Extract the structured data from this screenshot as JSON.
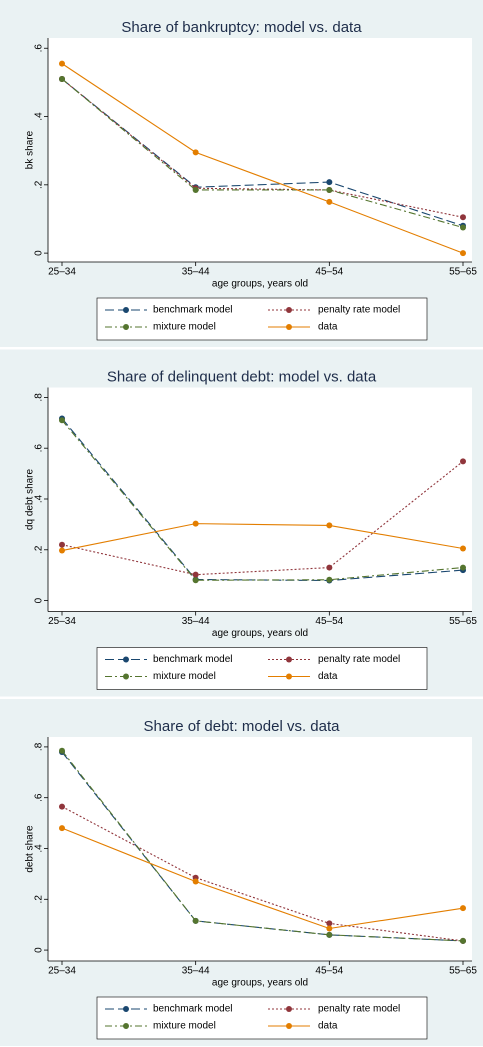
{
  "chart_data": [
    {
      "type": "line",
      "title": "Share of bankruptcy: model vs. data",
      "x_label": "age groups, years old",
      "y_label": "bk share",
      "categories": [
        "25–34",
        "35–44",
        "45–54",
        "55–65"
      ],
      "ylim": [
        -0.026,
        0.63
      ],
      "yticks": [
        0,
        {
          "value": 0.2,
          "label": ".2"
        },
        {
          "value": 0.4,
          "label": ".4"
        },
        {
          "value": 0.6,
          "label": ".6"
        }
      ],
      "series": [
        {
          "name": "benchmark model",
          "color": "#1a476f",
          "style": "longdash",
          "values": [
            0.51,
            0.193,
            0.208,
            0.08
          ]
        },
        {
          "name": "penalty rate model",
          "color": "#90353b",
          "style": "dot",
          "values": [
            0.51,
            0.19,
            0.185,
            0.105
          ]
        },
        {
          "name": "mixture model",
          "color": "#55752f",
          "style": "dashdot",
          "values": [
            0.51,
            0.185,
            0.185,
            0.075
          ]
        },
        {
          "name": "data",
          "color": "#e37e00",
          "style": "solid",
          "values": [
            0.555,
            0.295,
            0.15,
            0
          ]
        }
      ]
    },
    {
      "type": "line",
      "title": "Share of delinquent debt: model vs. data",
      "x_label": "age groups, years old",
      "y_label": "dq debt share",
      "categories": [
        "25–34",
        "35–44",
        "45–54",
        "55–65"
      ],
      "ylim": [
        -0.043,
        0.839
      ],
      "yticks": [
        0,
        {
          "value": 0.2,
          "label": ".2"
        },
        {
          "value": 0.4,
          "label": ".4"
        },
        {
          "value": 0.6,
          "label": ".6"
        },
        {
          "value": 0.8,
          "label": ".8"
        }
      ],
      "series": [
        {
          "name": "benchmark model",
          "color": "#1a476f",
          "style": "longdash",
          "values": [
            0.717,
            0.083,
            0.079,
            0.12
          ]
        },
        {
          "name": "penalty rate model",
          "color": "#90353b",
          "style": "dot",
          "values": [
            0.22,
            0.102,
            0.13,
            0.548
          ]
        },
        {
          "name": "mixture model",
          "color": "#55752f",
          "style": "dashdot",
          "values": [
            0.71,
            0.08,
            0.082,
            0.13
          ]
        },
        {
          "name": "data",
          "color": "#e37e00",
          "style": "solid",
          "values": [
            0.197,
            0.303,
            0.296,
            0.205
          ]
        }
      ]
    },
    {
      "type": "line",
      "title": "Share of debt: model vs. data",
      "x_label": "age groups, years old",
      "y_label": "debt share",
      "categories": [
        "25–34",
        "35–44",
        "45–54",
        "55–65"
      ],
      "ylim": [
        -0.043,
        0.839
      ],
      "yticks": [
        0,
        {
          "value": 0.2,
          "label": ".2"
        },
        {
          "value": 0.4,
          "label": ".4"
        },
        {
          "value": 0.6,
          "label": ".6"
        },
        {
          "value": 0.8,
          "label": ".8"
        }
      ],
      "series": [
        {
          "name": "benchmark model",
          "color": "#1a476f",
          "style": "longdash",
          "values": [
            0.78,
            0.115,
            0.06,
            0.036
          ]
        },
        {
          "name": "penalty rate model",
          "color": "#90353b",
          "style": "dot",
          "values": [
            0.565,
            0.285,
            0.105,
            0.036
          ]
        },
        {
          "name": "mixture model",
          "color": "#55752f",
          "style": "dashdot",
          "values": [
            0.785,
            0.115,
            0.06,
            0.036
          ]
        },
        {
          "name": "data",
          "color": "#e37e00",
          "style": "solid",
          "values": [
            0.48,
            0.27,
            0.085,
            0.165
          ]
        }
      ]
    }
  ]
}
